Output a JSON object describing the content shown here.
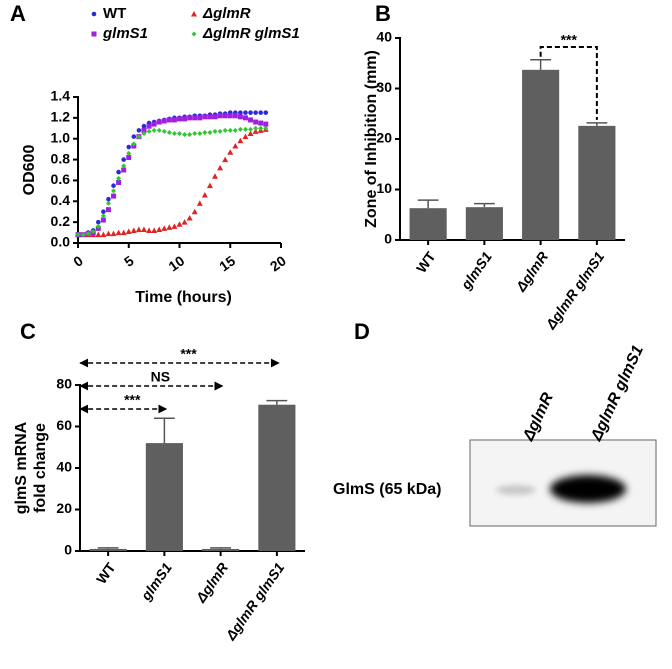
{
  "chart_data": [
    {
      "type": "scatter",
      "panel": "A",
      "x_label": "Time (hours)",
      "y_label": "OD600",
      "x": [
        0,
        0.5,
        1,
        1.5,
        2,
        2.5,
        3,
        3.5,
        4,
        4.5,
        5,
        5.5,
        6,
        6.5,
        7,
        7.5,
        8,
        8.5,
        9,
        9.5,
        10,
        10.5,
        11,
        11.5,
        12,
        12.5,
        13,
        13.5,
        14,
        14.5,
        15,
        15.5,
        16,
        16.5,
        17,
        17.5,
        18,
        18.5
      ],
      "series": [
        {
          "name": "WT",
          "color": "#2a2ad6",
          "values": [
            0.08,
            0.08,
            0.1,
            0.12,
            0.2,
            0.3,
            0.42,
            0.55,
            0.68,
            0.8,
            0.92,
            1.02,
            1.08,
            1.12,
            1.15,
            1.16,
            1.17,
            1.18,
            1.19,
            1.2,
            1.2,
            1.21,
            1.21,
            1.22,
            1.22,
            1.22,
            1.23,
            1.23,
            1.24,
            1.24,
            1.25,
            1.25,
            1.25,
            1.25,
            1.25,
            1.25,
            1.25,
            1.25
          ]
        },
        {
          "name": "ΔglmR",
          "color": "#e02424",
          "values": [
            0.08,
            0.08,
            0.08,
            0.08,
            0.08,
            0.08,
            0.09,
            0.09,
            0.1,
            0.1,
            0.11,
            0.12,
            0.13,
            0.13,
            0.12,
            0.12,
            0.13,
            0.14,
            0.15,
            0.16,
            0.18,
            0.2,
            0.24,
            0.3,
            0.38,
            0.46,
            0.55,
            0.64,
            0.72,
            0.8,
            0.87,
            0.93,
            0.98,
            1.02,
            1.05,
            1.07,
            1.08,
            1.09
          ]
        },
        {
          "name": "glmS1",
          "color": "#a020e0",
          "values": [
            0.08,
            0.08,
            0.09,
            0.1,
            0.14,
            0.22,
            0.32,
            0.45,
            0.58,
            0.7,
            0.82,
            0.93,
            1.02,
            1.08,
            1.12,
            1.14,
            1.16,
            1.17,
            1.18,
            1.18,
            1.19,
            1.19,
            1.2,
            1.2,
            1.2,
            1.21,
            1.21,
            1.21,
            1.22,
            1.22,
            1.22,
            1.22,
            1.21,
            1.2,
            1.18,
            1.16,
            1.15,
            1.14
          ]
        },
        {
          "name": "ΔglmR glmS1",
          "color": "#30c830",
          "values": [
            0.08,
            0.08,
            0.09,
            0.11,
            0.16,
            0.26,
            0.38,
            0.5,
            0.62,
            0.74,
            0.86,
            0.95,
            1.02,
            1.05,
            1.07,
            1.08,
            1.08,
            1.07,
            1.06,
            1.05,
            1.05,
            1.04,
            1.04,
            1.05,
            1.05,
            1.06,
            1.06,
            1.07,
            1.07,
            1.08,
            1.08,
            1.08,
            1.09,
            1.09,
            1.09,
            1.1,
            1.1,
            1.1
          ]
        }
      ],
      "xlim": [
        0,
        20
      ],
      "xticks": [
        0,
        5,
        10,
        15,
        20
      ],
      "ylim": [
        0,
        1.4
      ],
      "yticks": [
        {
          "value": 0,
          "label": "0.0"
        },
        0.2,
        0.4,
        0.6,
        0.8,
        {
          "value": 1,
          "label": "1.0"
        },
        1.2,
        1.4
      ]
    },
    {
      "type": "bar",
      "panel": "B",
      "y_label": "Zone of Inhibition (mm)",
      "color": "#5f5f5f",
      "categories": [
        "WT",
        "glmS1",
        "ΔglmR",
        "ΔglmR glmS1"
      ],
      "values": [
        6.3,
        6.5,
        33.7,
        22.6
      ],
      "errors": [
        1.6,
        0.7,
        2.0,
        0.6
      ],
      "ylim": [
        0,
        40
      ],
      "yticks": [
        0,
        10,
        20,
        30,
        40
      ],
      "comparisons": [
        {
          "between": [
            "ΔglmR",
            "ΔglmR glmS1"
          ],
          "label": "***"
        }
      ]
    },
    {
      "type": "bar",
      "panel": "C",
      "y_label": [
        "glmS mRNA",
        "fold change"
      ],
      "color": "#5f5f5f",
      "categories": [
        "WT",
        "glmS1",
        "ΔglmR",
        "ΔglmR glmS1"
      ],
      "values": [
        1,
        52,
        1,
        70.5
      ],
      "errors": [
        0.5,
        12,
        0.5,
        2
      ],
      "ylim": [
        0,
        80
      ],
      "yticks": [
        0,
        20,
        40,
        60,
        80
      ],
      "comparisons": [
        {
          "between": [
            "WT",
            "glmS1"
          ],
          "label": "***"
        },
        {
          "between": [
            "WT",
            "ΔglmR"
          ],
          "label": "NS"
        },
        {
          "between": [
            "WT",
            "ΔglmR glmS1"
          ],
          "label": "***"
        }
      ]
    }
  ],
  "blot": {
    "panel": "D",
    "lanes": [
      "ΔglmR",
      "ΔglmR glmS1"
    ],
    "band_label": "GlmS (65 kDa)"
  }
}
